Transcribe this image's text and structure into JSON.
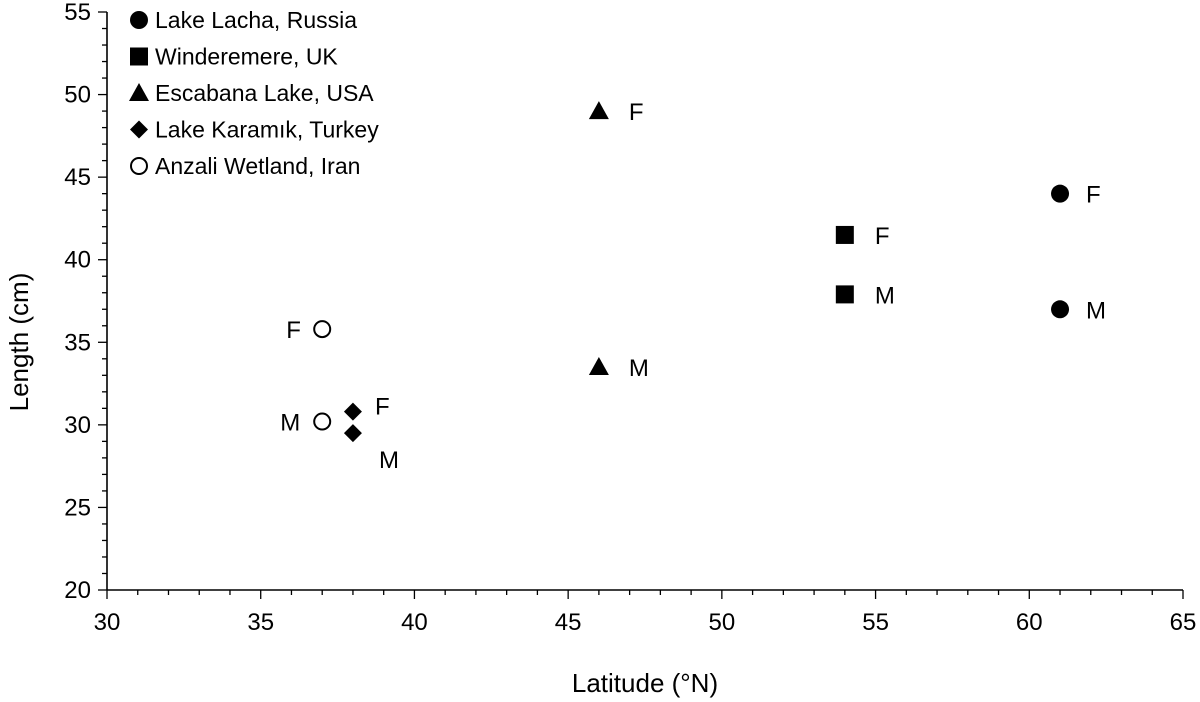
{
  "chart_data": {
    "type": "scatter",
    "xlabel": "Latitude (°N)",
    "ylabel": "Length (cm)",
    "xlim": [
      30,
      65
    ],
    "ylim": [
      20,
      55
    ],
    "xticks": [
      30,
      35,
      40,
      45,
      50,
      55,
      60,
      65
    ],
    "yticks": [
      20,
      25,
      30,
      35,
      40,
      45,
      50,
      55
    ],
    "xtick_labels": [
      "30",
      "35",
      "40",
      "45",
      "50",
      "55",
      "60",
      "65"
    ],
    "ytick_labels": [
      "20",
      "25",
      "30",
      "35",
      "40",
      "45",
      "50",
      "55"
    ],
    "grid": false,
    "legend_position": "top-left",
    "series": [
      {
        "name": "Lake Lacha, Russia",
        "marker": "circle-filled",
        "points": [
          {
            "x": 61,
            "y": 44,
            "label": "F"
          },
          {
            "x": 61,
            "y": 37,
            "label": "M"
          }
        ]
      },
      {
        "name": "Winderemere, UK",
        "marker": "square-filled",
        "points": [
          {
            "x": 54,
            "y": 41.5,
            "label": "F"
          },
          {
            "x": 54,
            "y": 37.9,
            "label": "M"
          }
        ]
      },
      {
        "name": "Escabana Lake, USA",
        "marker": "triangle-filled",
        "points": [
          {
            "x": 46,
            "y": 49,
            "label": "F"
          },
          {
            "x": 46,
            "y": 33.5,
            "label": "M"
          }
        ]
      },
      {
        "name": "Lake Karamık, Turkey",
        "marker": "diamond-filled",
        "points": [
          {
            "x": 38,
            "y": 30.8,
            "label": "F"
          },
          {
            "x": 38,
            "y": 29.5,
            "label": "M"
          }
        ]
      },
      {
        "name": "Anzali Wetland, Iran",
        "marker": "circle-open",
        "points": [
          {
            "x": 37,
            "y": 35.8,
            "label": "F"
          },
          {
            "x": 37,
            "y": 30.2,
            "label": "M"
          }
        ]
      }
    ]
  }
}
